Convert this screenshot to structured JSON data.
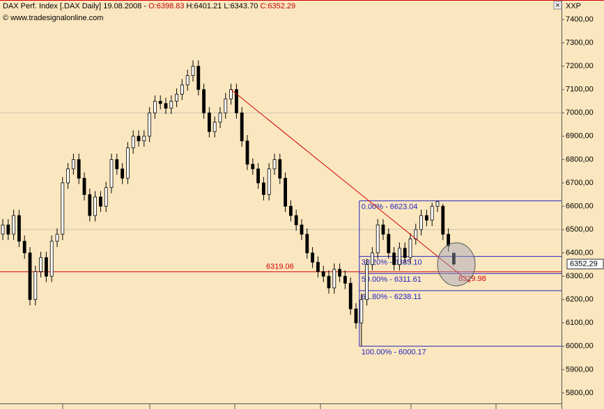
{
  "chart_data": {
    "type": "candlestick",
    "title": "DAX Perf. Index [.DAX Daily] 19.08.2008 -",
    "ohlc_labels": [
      "O:6398.83",
      "H:6401.21",
      "L:6343.70",
      "C:6352.29"
    ],
    "source": "© www.tradesignalonline.com",
    "axis_label": "XXP",
    "last_price_label": "6352,29",
    "last_price": 6352.29,
    "ylim": [
      5755,
      7436
    ],
    "yticks": [
      {
        "value": 5800,
        "label": "5800,00"
      },
      {
        "value": 5900,
        "label": "5900,00"
      },
      {
        "value": 6000,
        "label": "6000,00"
      },
      {
        "value": 6100,
        "label": "6100,00"
      },
      {
        "value": 6200,
        "label": "6200,00"
      },
      {
        "value": 6300,
        "label": "6300,00"
      },
      {
        "value": 6400,
        "label": "6400,00"
      },
      {
        "value": 6500,
        "label": "6500,00"
      },
      {
        "value": 6600,
        "label": "6600,00"
      },
      {
        "value": 6700,
        "label": "6700,00"
      },
      {
        "value": 6800,
        "label": "6800,00"
      },
      {
        "value": 6900,
        "label": "6900,00"
      },
      {
        "value": 7000,
        "label": "7000,00"
      },
      {
        "value": 7100,
        "label": "7100,00"
      },
      {
        "value": 7200,
        "label": "7200,00"
      },
      {
        "value": 7300,
        "label": "7300,00"
      },
      {
        "value": 7400,
        "label": "7400,00"
      }
    ],
    "grid_lines": [
      7000,
      6500
    ],
    "open": [
      6480,
      6520,
      6480,
      6560,
      6450,
      6400,
      6200,
      6320,
      6380,
      6300,
      6450,
      6480,
      6700,
      6760,
      6800,
      6720,
      6650,
      6560,
      6640,
      6600,
      6680,
      6800,
      6760,
      6720,
      6850,
      6900,
      6880,
      6900,
      7000,
      7050,
      7040,
      7020,
      7050,
      7080,
      7120,
      7160,
      7200,
      7100,
      7000,
      6920,
      6960,
      7000,
      7060,
      7100,
      7000,
      6880,
      6780,
      6760,
      6700,
      6650,
      6760,
      6800,
      6720,
      6600,
      6560,
      6520,
      6480,
      6400,
      6360,
      6320,
      6300,
      6250,
      6330,
      6300,
      6270,
      6160,
      6100,
      6200,
      6350,
      6400,
      6520,
      6480,
      6400,
      6350,
      6420,
      6380,
      6460,
      6500,
      6560,
      6540,
      6600,
      6600,
      6480,
      6398.83
    ],
    "high": [
      6545,
      6545,
      6585,
      6585,
      6475,
      6425,
      6345,
      6405,
      6405,
      6475,
      6505,
      6725,
      6785,
      6825,
      6825,
      6745,
      6675,
      6665,
      6665,
      6705,
      6825,
      6825,
      6785,
      6875,
      6925,
      6925,
      6925,
      7025,
      7075,
      7075,
      7065,
      7075,
      7105,
      7145,
      7185,
      7225,
      7225,
      7125,
      7025,
      6985,
      7025,
      7085,
      7125,
      7125,
      7025,
      6905,
      6805,
      6785,
      6725,
      6785,
      6825,
      6825,
      6745,
      6625,
      6585,
      6545,
      6505,
      6425,
      6385,
      6345,
      6325,
      6355,
      6355,
      6325,
      6295,
      6185,
      6225,
      6375,
      6425,
      6545,
      6545,
      6505,
      6425,
      6445,
      6445,
      6485,
      6525,
      6585,
      6585,
      6615,
      6623.04,
      6610,
      6505,
      6401.21
    ],
    "low": [
      6455,
      6455,
      6455,
      6425,
      6375,
      6175,
      6175,
      6295,
      6275,
      6275,
      6425,
      6455,
      6675,
      6735,
      6695,
      6625,
      6535,
      6535,
      6575,
      6575,
      6655,
      6735,
      6695,
      6695,
      6825,
      6855,
      6855,
      6875,
      6975,
      7015,
      6995,
      6995,
      7025,
      7055,
      7095,
      7135,
      7075,
      6975,
      6895,
      6895,
      6935,
      6975,
      7035,
      6975,
      6855,
      6755,
      6735,
      6675,
      6625,
      6625,
      6735,
      6695,
      6575,
      6535,
      6495,
      6455,
      6375,
      6335,
      6295,
      6275,
      6225,
      6225,
      6275,
      6245,
      6135,
      6075,
      6000.17,
      6175,
      6325,
      6375,
      6455,
      6375,
      6325,
      6325,
      6355,
      6355,
      6435,
      6475,
      6515,
      6515,
      6575,
      6455,
      6405,
      6343.7
    ],
    "close": [
      6520,
      6480,
      6560,
      6450,
      6400,
      6200,
      6320,
      6380,
      6300,
      6450,
      6480,
      6700,
      6760,
      6800,
      6720,
      6650,
      6560,
      6640,
      6600,
      6680,
      6800,
      6760,
      6720,
      6850,
      6900,
      6880,
      6900,
      7000,
      7050,
      7040,
      7020,
      7050,
      7080,
      7120,
      7160,
      7200,
      7100,
      7000,
      6920,
      6960,
      7000,
      7060,
      7100,
      7000,
      6880,
      6780,
      6760,
      6700,
      6650,
      6760,
      6800,
      6720,
      6600,
      6560,
      6520,
      6480,
      6400,
      6360,
      6320,
      6300,
      6250,
      6330,
      6300,
      6270,
      6160,
      6100,
      6200,
      6350,
      6400,
      6520,
      6480,
      6400,
      6350,
      6420,
      6380,
      6460,
      6500,
      6560,
      6540,
      6600,
      6620,
      6480,
      6430,
      6352.29
    ],
    "support": {
      "value": 6319.06,
      "label": "6319.06",
      "color": "#d00000"
    },
    "trendline": {
      "x": [
        42,
        86
      ],
      "values": [
        7100,
        6273
      ],
      "label": "6329.98",
      "label_value": 6329.98,
      "color": "#d00000"
    },
    "fib_start": 66,
    "fib_color": "#2020c0",
    "fib_levels": [
      {
        "value": 6623.04,
        "label": "0.00% - 6623.04"
      },
      {
        "value": 6385.1,
        "label": "38.20% - 6385.10"
      },
      {
        "value": 6311.61,
        "label": "50.00% - 6311.61"
      },
      {
        "value": 6238.11,
        "label": "61.80% - 6238.11"
      },
      {
        "value": 6000.17,
        "label": "100.00% - 6000.17"
      }
    ]
  }
}
